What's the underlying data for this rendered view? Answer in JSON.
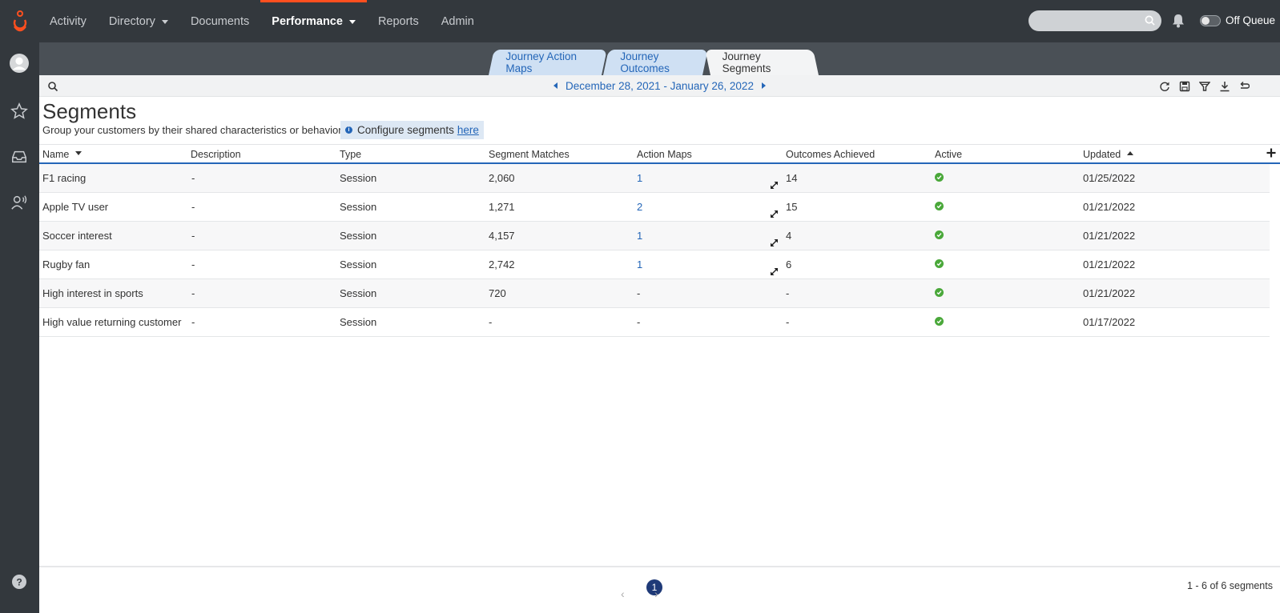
{
  "nav": {
    "items": [
      {
        "label": "Activity",
        "has_caret": false,
        "active": false
      },
      {
        "label": "Directory",
        "has_caret": true,
        "active": false
      },
      {
        "label": "Documents",
        "has_caret": false,
        "active": false
      },
      {
        "label": "Performance",
        "has_caret": true,
        "active": true
      },
      {
        "label": "Reports",
        "has_caret": false,
        "active": false
      },
      {
        "label": "Admin",
        "has_caret": false,
        "active": false
      }
    ],
    "search_placeholder": "",
    "queue_label": "Off Queue",
    "queue_on": false
  },
  "rail": [
    "avatar",
    "star-icon",
    "inbox-icon",
    "user-voice-icon",
    "help-icon"
  ],
  "tabs": [
    {
      "label": "Journey Action Maps",
      "active": false
    },
    {
      "label": "Journey Outcomes",
      "active": false
    },
    {
      "label": "Journey Segments",
      "active": true
    }
  ],
  "toolbar": {
    "date_range": "December 28, 2021 - January 26, 2022",
    "icons": [
      "refresh-icon",
      "save-icon",
      "filter-icon",
      "download-icon",
      "undo-icon"
    ]
  },
  "page": {
    "title": "Segments",
    "subtitle": "Group your customers by their shared characteristics or behaviors.",
    "info_text": "Configure segments",
    "info_link": "here"
  },
  "table": {
    "columns": [
      "Name",
      "Description",
      "Type",
      "Segment Matches",
      "Action Maps",
      "Outcomes Achieved",
      "Active",
      "Updated"
    ],
    "rows": [
      {
        "name": "F1 racing",
        "description": "-",
        "type": "Session",
        "matches": "2,060",
        "action_maps": "1",
        "outcomes": "14",
        "expandable": true,
        "active": true,
        "updated": "01/25/2022"
      },
      {
        "name": "Apple TV user",
        "description": "-",
        "type": "Session",
        "matches": "1,271",
        "action_maps": "2",
        "outcomes": "15",
        "expandable": true,
        "active": true,
        "updated": "01/21/2022"
      },
      {
        "name": "Soccer interest",
        "description": "-",
        "type": "Session",
        "matches": "4,157",
        "action_maps": "1",
        "outcomes": "4",
        "expandable": true,
        "active": true,
        "updated": "01/21/2022"
      },
      {
        "name": "Rugby fan",
        "description": "-",
        "type": "Session",
        "matches": "2,742",
        "action_maps": "1",
        "outcomes": "6",
        "expandable": true,
        "active": true,
        "updated": "01/21/2022"
      },
      {
        "name": "High interest in sports",
        "description": "-",
        "type": "Session",
        "matches": "720",
        "action_maps": "-",
        "outcomes": "-",
        "expandable": false,
        "active": true,
        "updated": "01/21/2022"
      },
      {
        "name": "High value returning customer",
        "description": "-",
        "type": "Session",
        "matches": "-",
        "action_maps": "-",
        "outcomes": "-",
        "expandable": false,
        "active": true,
        "updated": "01/17/2022"
      }
    ]
  },
  "pagination": {
    "current_page": "1",
    "summary": "1 - 6 of 6 segments"
  },
  "colors": {
    "accent": "#2466b8",
    "nav_bg": "#33383d",
    "brand": "#ff4f1f",
    "active_green": "#4aa83a",
    "page_badge": "#1f3a78"
  }
}
